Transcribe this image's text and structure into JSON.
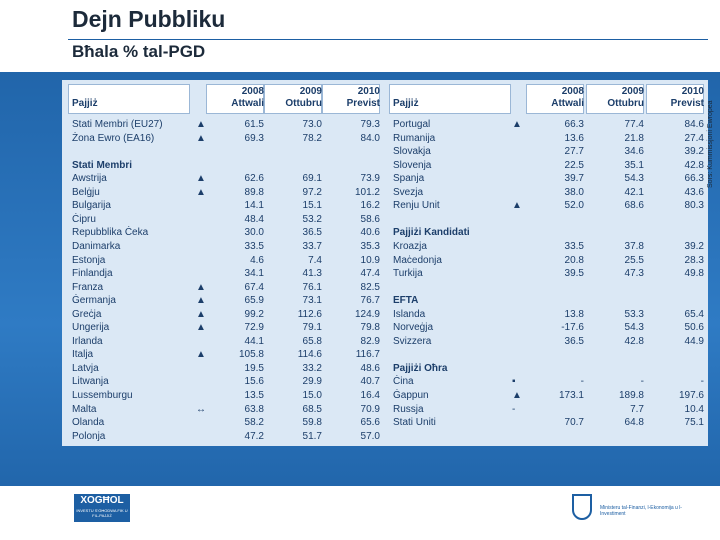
{
  "header": {
    "title": "Dejn Pubbliku",
    "subtitle": "Bħala % tal-PGD"
  },
  "source": "Sors: Kummissjoni Ewropea",
  "table": {
    "country_header": "Pajjiż",
    "columns": [
      {
        "year": "2008",
        "label": "Attwali"
      },
      {
        "year": "2009",
        "label": "Ottubru"
      },
      {
        "year": "2010",
        "label": "Previst"
      }
    ],
    "left": [
      {
        "rows": [
          {
            "name": "Stati Membri (EU27)",
            "indicator": "▲",
            "values": [
              "61.5",
              "73.0",
              "79.3"
            ]
          },
          {
            "name": "Żona Ewro (EA16)",
            "indicator": "▲",
            "values": [
              "69.3",
              "78.2",
              "84.0"
            ]
          }
        ]
      },
      {
        "title": "Stati Membri",
        "rows": [
          {
            "name": "Awstrija",
            "indicator": "▲",
            "values": [
              "62.6",
              "69.1",
              "73.9"
            ]
          },
          {
            "name": "Belġju",
            "indicator": "▲",
            "values": [
              "89.8",
              "97.2",
              "101.2"
            ]
          },
          {
            "name": "Bulgarija",
            "indicator": null,
            "values": [
              "14.1",
              "15.1",
              "16.2"
            ]
          },
          {
            "name": "Ċipru",
            "indicator": null,
            "values": [
              "48.4",
              "53.2",
              "58.6"
            ]
          },
          {
            "name": "Repubblika Ċeka",
            "indicator": null,
            "values": [
              "30.0",
              "36.5",
              "40.6"
            ]
          },
          {
            "name": "Danimarka",
            "indicator": null,
            "values": [
              "33.5",
              "33.7",
              "35.3"
            ]
          },
          {
            "name": "Estonja",
            "indicator": null,
            "values": [
              "4.6",
              "7.4",
              "10.9"
            ]
          },
          {
            "name": "Finlandja",
            "indicator": null,
            "values": [
              "34.1",
              "41.3",
              "47.4"
            ]
          },
          {
            "name": "Franza",
            "indicator": "▲",
            "values": [
              "67.4",
              "76.1",
              "82.5"
            ]
          },
          {
            "name": "Ġermanja",
            "indicator": "▲",
            "values": [
              "65.9",
              "73.1",
              "76.7"
            ]
          },
          {
            "name": "Greċja",
            "indicator": "▲",
            "values": [
              "99.2",
              "112.6",
              "124.9"
            ]
          },
          {
            "name": "Ungerija",
            "indicator": "▲",
            "values": [
              "72.9",
              "79.1",
              "79.8"
            ]
          },
          {
            "name": "Irlanda",
            "indicator": null,
            "values": [
              "44.1",
              "65.8",
              "82.9"
            ]
          },
          {
            "name": "Italja",
            "indicator": "▲",
            "values": [
              "105.8",
              "114.6",
              "116.7"
            ]
          },
          {
            "name": "Latvja",
            "indicator": null,
            "values": [
              "19.5",
              "33.2",
              "48.6"
            ]
          },
          {
            "name": "Litwanja",
            "indicator": null,
            "values": [
              "15.6",
              "29.9",
              "40.7"
            ]
          },
          {
            "name": "Lussemburgu",
            "indicator": null,
            "values": [
              "13.5",
              "15.0",
              "16.4"
            ]
          },
          {
            "name": "Malta",
            "indicator": "↔",
            "values": [
              "63.8",
              "68.5",
              "70.9"
            ]
          },
          {
            "name": "Olanda",
            "indicator": null,
            "values": [
              "58.2",
              "59.8",
              "65.6"
            ]
          },
          {
            "name": "Polonja",
            "indicator": null,
            "values": [
              "47.2",
              "51.7",
              "57.0"
            ]
          }
        ]
      }
    ],
    "right": [
      {
        "rows": [
          {
            "name": "Portugal",
            "indicator": "▲",
            "values": [
              "66.3",
              "77.4",
              "84.6"
            ]
          },
          {
            "name": "Rumanija",
            "indicator": null,
            "values": [
              "13.6",
              "21.8",
              "27.4"
            ]
          },
          {
            "name": "Slovakja",
            "indicator": null,
            "values": [
              "27.7",
              "34.6",
              "39.2"
            ]
          },
          {
            "name": "Slovenja",
            "indicator": null,
            "values": [
              "22.5",
              "35.1",
              "42.8"
            ]
          },
          {
            "name": "Spanja",
            "indicator": null,
            "values": [
              "39.7",
              "54.3",
              "66.3"
            ]
          },
          {
            "name": "Svezja",
            "indicator": null,
            "values": [
              "38.0",
              "42.1",
              "43.6"
            ]
          },
          {
            "name": "Renju Unit",
            "indicator": "▲",
            "values": [
              "52.0",
              "68.6",
              "80.3"
            ]
          }
        ]
      },
      {
        "title": "Pajjiżi Kandidati",
        "rows": [
          {
            "name": "Kroazja",
            "indicator": null,
            "values": [
              "33.5",
              "37.8",
              "39.2"
            ]
          },
          {
            "name": "Maċedonja",
            "indicator": null,
            "values": [
              "20.8",
              "25.5",
              "28.3"
            ]
          },
          {
            "name": "Turkija",
            "indicator": null,
            "values": [
              "39.5",
              "47.3",
              "49.8"
            ]
          }
        ]
      },
      {
        "title": "EFTA",
        "rows": [
          {
            "name": "Islanda",
            "indicator": null,
            "values": [
              "13.8",
              "53.3",
              "65.4"
            ]
          },
          {
            "name": "Norveġja",
            "indicator": null,
            "values": [
              "-17.6",
              "54.3",
              "50.6"
            ]
          },
          {
            "name": "Svizzera",
            "indicator": null,
            "values": [
              "36.5",
              "42.8",
              "44.9"
            ]
          }
        ]
      },
      {
        "title": "Pajjiżi Oħra",
        "rows": [
          {
            "name": "Ċina",
            "indicator": "▪",
            "values": [
              "-",
              "-",
              "-"
            ]
          },
          {
            "name": "Ġappun",
            "indicator": "▲",
            "values": [
              "173.1",
              "189.8",
              "197.6"
            ]
          },
          {
            "name": "Russja",
            "indicator": "-",
            "values": [
              null,
              "7.7",
              "10.4"
            ]
          },
          {
            "name": "Stati Uniti",
            "indicator": null,
            "values": [
              "70.7",
              "64.8",
              "75.1"
            ]
          }
        ]
      }
    ]
  },
  "footer": {
    "logo": "XOGĦOL",
    "tagline": "INVESTU S'GĦODWA FIK U FIL-PAJJIŻ",
    "ministry": "Ministeru tal-Finanzi, l-Ekonomija u l-Investiment"
  }
}
